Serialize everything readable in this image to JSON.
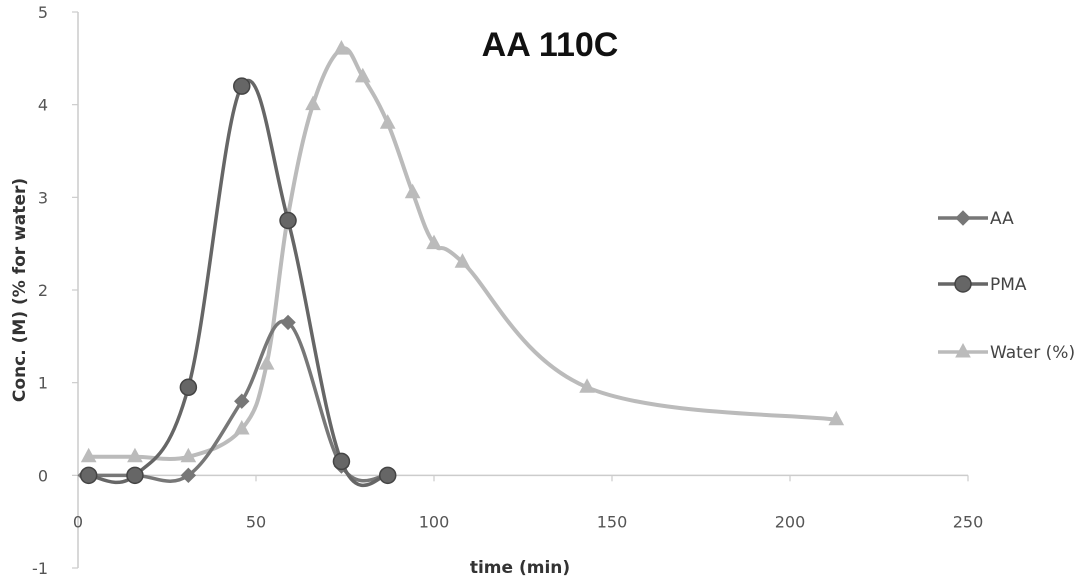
{
  "chart_data": {
    "type": "line",
    "title": "AA 110C",
    "xlabel": "time (min)",
    "ylabel": "Conc. (M) (% for water)",
    "xlim": [
      0,
      250
    ],
    "ylim": [
      -1,
      5
    ],
    "xticks": [
      "0",
      "50",
      "100",
      "150",
      "200",
      "250"
    ],
    "yticks": [
      "-1",
      "0",
      "1",
      "2",
      "3",
      "4",
      "5"
    ],
    "legend_position": "right",
    "grid": false,
    "series": [
      {
        "name": "AA",
        "color": "#777777",
        "marker": "diamond",
        "points": [
          [
            2,
            0
          ],
          [
            16,
            0
          ],
          [
            31,
            0
          ],
          [
            46,
            0.8
          ],
          [
            59,
            1.65
          ],
          [
            74,
            0.1
          ],
          [
            87,
            0
          ]
        ]
      },
      {
        "name": "PMA",
        "color": "#666666",
        "marker": "circle",
        "points": [
          [
            3,
            0
          ],
          [
            16,
            0
          ],
          [
            31,
            0.95
          ],
          [
            46,
            4.2
          ],
          [
            59,
            2.75
          ],
          [
            74,
            0.15
          ],
          [
            87,
            0
          ]
        ]
      },
      {
        "name": "Water (%)",
        "color": "#bbbbbb",
        "marker": "triangle",
        "points": [
          [
            3,
            0.2
          ],
          [
            16,
            0.2
          ],
          [
            31,
            0.2
          ],
          [
            46,
            0.5
          ],
          [
            53,
            1.2
          ],
          [
            59,
            2.8
          ],
          [
            66,
            4.0
          ],
          [
            74,
            4.6
          ],
          [
            80,
            4.3
          ],
          [
            87,
            3.8
          ],
          [
            94,
            3.05
          ],
          [
            100,
            2.5
          ],
          [
            108,
            2.3
          ],
          [
            143,
            0.95
          ],
          [
            213,
            0.6
          ]
        ]
      }
    ]
  }
}
